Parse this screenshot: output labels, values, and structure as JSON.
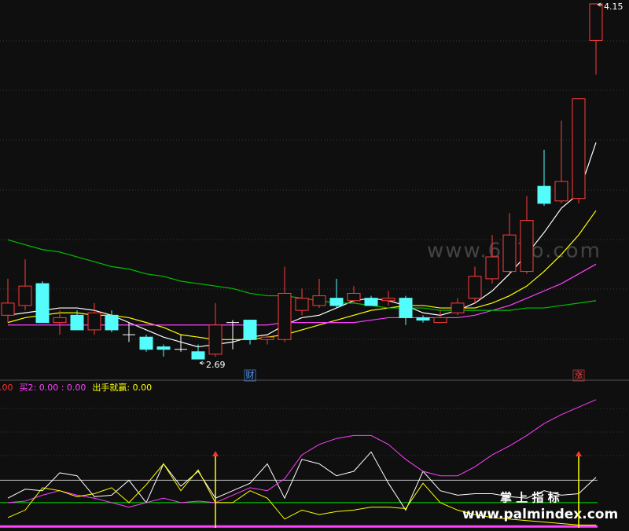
{
  "chart_data": [
    {
      "type": "candlestick",
      "ylim": [
        2.616,
        4.166
      ],
      "candles": [
        {
          "open": 2.87,
          "high": 3.02,
          "low": 2.84,
          "close": 2.92
        },
        {
          "open": 2.91,
          "high": 3.1,
          "low": 2.89,
          "close": 2.99
        },
        {
          "open": 3.0,
          "high": 3.01,
          "low": 2.84,
          "close": 2.84
        },
        {
          "open": 2.84,
          "high": 2.89,
          "low": 2.79,
          "close": 2.86
        },
        {
          "open": 2.87,
          "high": 2.89,
          "low": 2.81,
          "close": 2.81
        },
        {
          "open": 2.81,
          "high": 2.92,
          "low": 2.79,
          "close": 2.88
        },
        {
          "open": 2.87,
          "high": 2.89,
          "low": 2.8,
          "close": 2.81
        },
        {
          "open": 2.79,
          "high": 2.84,
          "low": 2.76,
          "close": 2.79
        },
        {
          "open": 2.78,
          "high": 2.79,
          "low": 2.72,
          "close": 2.73
        },
        {
          "open": 2.74,
          "high": 2.75,
          "low": 2.7,
          "close": 2.73
        },
        {
          "open": 2.73,
          "high": 2.79,
          "low": 2.72,
          "close": 2.73
        },
        {
          "open": 2.72,
          "high": 2.75,
          "low": 2.69,
          "close": 2.69
        },
        {
          "open": 2.71,
          "high": 2.92,
          "low": 2.7,
          "close": 2.83
        },
        {
          "open": 2.84,
          "high": 2.85,
          "low": 2.73,
          "close": 2.84
        },
        {
          "open": 2.85,
          "high": 2.85,
          "low": 2.75,
          "close": 2.77
        },
        {
          "open": 2.77,
          "high": 2.79,
          "low": 2.75,
          "close": 2.78
        },
        {
          "open": 2.77,
          "high": 3.07,
          "low": 2.76,
          "close": 2.96
        },
        {
          "open": 2.89,
          "high": 2.98,
          "low": 2.87,
          "close": 2.94
        },
        {
          "open": 2.91,
          "high": 3.02,
          "low": 2.9,
          "close": 2.95
        },
        {
          "open": 2.94,
          "high": 3.02,
          "low": 2.9,
          "close": 2.91
        },
        {
          "open": 2.93,
          "high": 2.99,
          "low": 2.92,
          "close": 2.96
        },
        {
          "open": 2.94,
          "high": 2.95,
          "low": 2.91,
          "close": 2.91
        },
        {
          "open": 2.93,
          "high": 2.97,
          "low": 2.91,
          "close": 2.94
        },
        {
          "open": 2.94,
          "high": 2.95,
          "low": 2.83,
          "close": 2.86
        },
        {
          "open": 2.86,
          "high": 2.87,
          "low": 2.84,
          "close": 2.85
        },
        {
          "open": 2.84,
          "high": 2.89,
          "low": 2.84,
          "close": 2.86
        },
        {
          "open": 2.88,
          "high": 2.94,
          "low": 2.87,
          "close": 2.92
        },
        {
          "open": 2.94,
          "high": 3.07,
          "low": 2.92,
          "close": 3.03
        },
        {
          "open": 3.02,
          "high": 3.2,
          "low": 3.0,
          "close": 3.11
        },
        {
          "open": 3.05,
          "high": 3.29,
          "low": 3.04,
          "close": 3.2
        },
        {
          "open": 3.05,
          "high": 3.36,
          "low": 3.04,
          "close": 3.26
        },
        {
          "open": 3.4,
          "high": 3.55,
          "low": 3.32,
          "close": 3.33
        },
        {
          "open": 3.34,
          "high": 3.67,
          "low": 3.33,
          "close": 3.42
        },
        {
          "open": 3.35,
          "high": 3.76,
          "low": 3.33,
          "close": 3.76
        },
        {
          "open": 4.0,
          "high": 4.15,
          "low": 3.86,
          "close": 4.15
        }
      ],
      "series": [
        {
          "color": "#ffffff",
          "values": [
            2.87,
            2.88,
            2.89,
            2.9,
            2.9,
            2.89,
            2.87,
            2.84,
            2.81,
            2.78,
            2.76,
            2.74,
            2.75,
            2.76,
            2.78,
            2.79,
            2.83,
            2.86,
            2.87,
            2.9,
            2.93,
            2.94,
            2.93,
            2.91,
            2.88,
            2.87,
            2.89,
            2.92,
            2.97,
            3.04,
            3.12,
            3.21,
            3.31,
            3.37,
            3.58
          ]
        },
        {
          "color": "#ffff00",
          "values": [
            2.84,
            2.86,
            2.87,
            2.88,
            2.88,
            2.87,
            2.87,
            2.86,
            2.84,
            2.82,
            2.79,
            2.78,
            2.77,
            2.77,
            2.77,
            2.78,
            2.79,
            2.81,
            2.83,
            2.85,
            2.87,
            2.89,
            2.9,
            2.91,
            2.91,
            2.9,
            2.9,
            2.9,
            2.92,
            2.95,
            2.99,
            3.05,
            3.12,
            3.2,
            3.3
          ]
        },
        {
          "color": "#ff40ff",
          "values": [
            2.83,
            2.83,
            2.83,
            2.83,
            2.83,
            2.83,
            2.83,
            2.83,
            2.83,
            2.83,
            2.83,
            2.83,
            2.83,
            2.83,
            2.83,
            2.83,
            2.84,
            2.84,
            2.84,
            2.84,
            2.84,
            2.85,
            2.86,
            2.86,
            2.86,
            2.86,
            2.86,
            2.87,
            2.89,
            2.91,
            2.94,
            2.97,
            3.0,
            3.04,
            3.08
          ]
        },
        {
          "color": "#00c000",
          "values": [
            3.18,
            3.16,
            3.14,
            3.13,
            3.11,
            3.09,
            3.07,
            3.06,
            3.04,
            3.03,
            3.01,
            3.0,
            2.99,
            2.98,
            2.96,
            2.95,
            2.95,
            2.94,
            2.93,
            2.92,
            2.92,
            2.91,
            2.9,
            2.9,
            2.9,
            2.89,
            2.89,
            2.89,
            2.89,
            2.89,
            2.9,
            2.9,
            2.91,
            2.92,
            2.93
          ]
        }
      ],
      "annotations": [
        {
          "index": 34,
          "value": 4.15
        },
        {
          "index": 11,
          "value": 2.69
        }
      ],
      "markers": [
        {
          "index": 14,
          "text": "财",
          "color": "#5aa0ff"
        },
        {
          "index": 33,
          "text": "涨",
          "color": "#ff4040"
        }
      ]
    },
    {
      "type": "line",
      "ylim": [
        0,
        100
      ],
      "legend": [
        {
          "text": "0.00",
          "color": "#ff3030"
        },
        {
          "text": "买2: 0.00 : 0.00",
          "color": "#ff40ff"
        },
        {
          "text": "出手就赢: 0.00",
          "color": "#ffff00"
        }
      ],
      "series": [
        {
          "color": "#ffffff",
          "values": [
            22,
            28,
            27,
            39,
            37,
            23,
            24,
            34,
            19,
            45,
            30,
            40,
            22,
            27,
            32,
            45,
            22,
            48,
            45,
            37,
            40,
            53,
            32,
            14,
            40,
            27,
            24,
            25,
            25,
            23,
            22,
            27,
            24,
            25,
            36
          ]
        },
        {
          "color": "#ff40ff",
          "values": [
            19,
            20,
            24,
            27,
            24,
            22,
            19,
            16,
            19,
            22,
            19,
            20,
            19,
            24,
            29,
            27,
            35,
            51,
            58,
            62,
            64,
            64,
            58,
            48,
            40,
            37,
            37,
            43,
            51,
            57,
            64,
            72,
            78,
            83,
            88
          ]
        },
        {
          "color": "#ffff00",
          "values": [
            9,
            14,
            29,
            27,
            23,
            25,
            29,
            19,
            31,
            45,
            27,
            41,
            19,
            19,
            27,
            22,
            8,
            14,
            11,
            13,
            14,
            16,
            16,
            15,
            32,
            19,
            14,
            11,
            9,
            8,
            7,
            6,
            5,
            4,
            4
          ]
        }
      ],
      "levels": [
        {
          "value": 34,
          "color": "#bbbbbb"
        },
        {
          "value": 19,
          "color": "#00e000"
        },
        {
          "value": 3,
          "color": "#ff40ff"
        }
      ],
      "signals": [
        12,
        33
      ]
    }
  ],
  "watermarks": [
    "www.6o7o.com",
    "掌 上 指 标",
    "www.palmindex.com"
  ]
}
